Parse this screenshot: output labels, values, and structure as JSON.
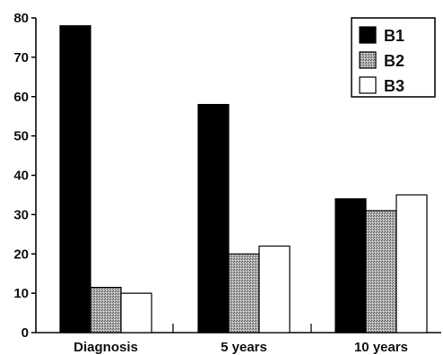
{
  "chart_data": {
    "type": "bar",
    "title": "",
    "xlabel": "",
    "ylabel": "",
    "categories": [
      "Diagnosis",
      "5 years",
      "10 years"
    ],
    "series": [
      {
        "name": "B1",
        "values": [
          78,
          58,
          34
        ],
        "color": "#000000",
        "fill": "solid"
      },
      {
        "name": "B2",
        "values": [
          11.5,
          20,
          31
        ],
        "color": "#9a9a9a",
        "fill": "stipple"
      },
      {
        "name": "B3",
        "values": [
          10,
          22,
          35
        ],
        "color": "#ffffff",
        "fill": "outline"
      }
    ],
    "ylim": [
      0,
      80
    ],
    "yticks": [
      0,
      10,
      20,
      30,
      40,
      50,
      60,
      70,
      80
    ],
    "grid": false,
    "legend": "top-right"
  }
}
